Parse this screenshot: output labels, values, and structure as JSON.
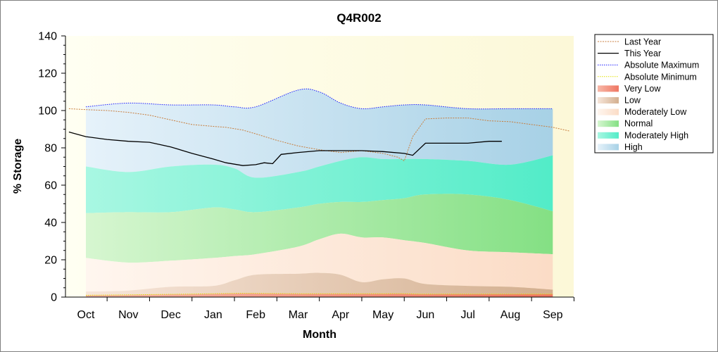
{
  "chart_data": {
    "type": "area",
    "title": "Q4R002",
    "xlabel": "Month",
    "ylabel": "% Storage",
    "ylim": [
      0,
      140
    ],
    "yticks": [
      0,
      20,
      40,
      60,
      80,
      100,
      120,
      140
    ],
    "categories": [
      "Oct",
      "Nov",
      "Dec",
      "Jan",
      "Feb",
      "Mar",
      "Apr",
      "May",
      "Jun",
      "Jul",
      "Aug",
      "Sep"
    ],
    "legend_position": "right",
    "colors": {
      "last_year": "#c87d3c",
      "this_year": "#000000",
      "abs_max": "#1a1aff",
      "abs_min": "#e0e000",
      "very_low": "#f07a66",
      "low": "#cfa888",
      "moderately_low": "#fde0cc",
      "normal": "#90e690",
      "moderately_high": "#70f2d0",
      "high": "#b4d8ec",
      "plot_bg": "#fffde6"
    },
    "legend": [
      {
        "key": "last_year",
        "label": "Last Year",
        "style": "dashed-line"
      },
      {
        "key": "this_year",
        "label": "This Year",
        "style": "line"
      },
      {
        "key": "abs_max",
        "label": "Absolute Maximum",
        "style": "dotted-line"
      },
      {
        "key": "abs_min",
        "label": "Absolute Minimum",
        "style": "dotted-line"
      },
      {
        "key": "very_low",
        "label": "Very Low",
        "style": "band"
      },
      {
        "key": "low",
        "label": "Low",
        "style": "band"
      },
      {
        "key": "moderately_low",
        "label": "Moderately Low",
        "style": "band"
      },
      {
        "key": "normal",
        "label": "Normal",
        "style": "band"
      },
      {
        "key": "moderately_high",
        "label": "Moderately High",
        "style": "band"
      },
      {
        "key": "high",
        "label": "High",
        "style": "band"
      }
    ],
    "bands_x": [
      0,
      1,
      2,
      3,
      3.5,
      4,
      5,
      5.5,
      6,
      6.5,
      7,
      7.5,
      8,
      9,
      10,
      11
    ],
    "bands": {
      "abs_min": [
        1,
        1.2,
        1.5,
        1.8,
        2,
        2,
        1.8,
        1.8,
        1.8,
        1.8,
        1.8,
        1.8,
        1.6,
        1.6,
        1.6,
        1.6
      ],
      "very_low": [
        3,
        3.5,
        5.5,
        6,
        9,
        12,
        12.5,
        13,
        12,
        8,
        9.5,
        10,
        7,
        6,
        5.5,
        4
      ],
      "low": [
        21,
        18.5,
        19.5,
        21,
        22,
        23,
        27,
        31,
        34,
        32,
        32,
        30.5,
        29,
        25,
        24,
        23
      ],
      "moderately_low": [
        45,
        45.5,
        45.5,
        48,
        47,
        45.5,
        48,
        50,
        51,
        51,
        52,
        53,
        55,
        55,
        52,
        46
      ],
      "normal": [
        70,
        67,
        70,
        71,
        69,
        64,
        67,
        70,
        73,
        75,
        74,
        74,
        74,
        73,
        71,
        76
      ],
      "abs_max": [
        102,
        104,
        103,
        103,
        102,
        102,
        111,
        110,
        104,
        101,
        102,
        103,
        103,
        101,
        101,
        101
      ]
    },
    "series": [
      {
        "key": "last_year",
        "name": "Last Year",
        "x": [
          -0.4,
          0,
          0.5,
          1,
          1.5,
          2,
          2.5,
          3,
          3.3,
          3.7,
          4,
          4.5,
          5,
          5.5,
          6,
          6.5,
          7,
          7.35,
          7.5,
          7.7,
          8,
          8.5,
          9,
          9.5,
          10,
          10.5,
          11,
          11.4
        ],
        "values": [
          101,
          100.5,
          100,
          99,
          97.5,
          95,
          92.5,
          91.5,
          91,
          89.5,
          87.5,
          84,
          81,
          79,
          77.5,
          78.5,
          77,
          75,
          73,
          86,
          95.5,
          96,
          96,
          94.5,
          94,
          92.5,
          91,
          89
        ]
      },
      {
        "key": "this_year",
        "name": "This Year",
        "x": [
          -0.4,
          0,
          0.5,
          1,
          1.5,
          2,
          2.5,
          3,
          3.3,
          3.7,
          4,
          4.2,
          4.4,
          4.6,
          5,
          5.5,
          6,
          6.5,
          7,
          7.5,
          7.7,
          8,
          8.5,
          9,
          9.5,
          9.8
        ],
        "values": [
          88.5,
          86,
          84.5,
          83.5,
          83,
          80.5,
          77,
          74,
          72,
          70.5,
          71,
          72,
          71.5,
          76.5,
          77.5,
          78.5,
          78.5,
          78.5,
          78,
          77,
          76,
          82.5,
          82.5,
          82.5,
          83.5,
          83.5
        ]
      }
    ]
  }
}
